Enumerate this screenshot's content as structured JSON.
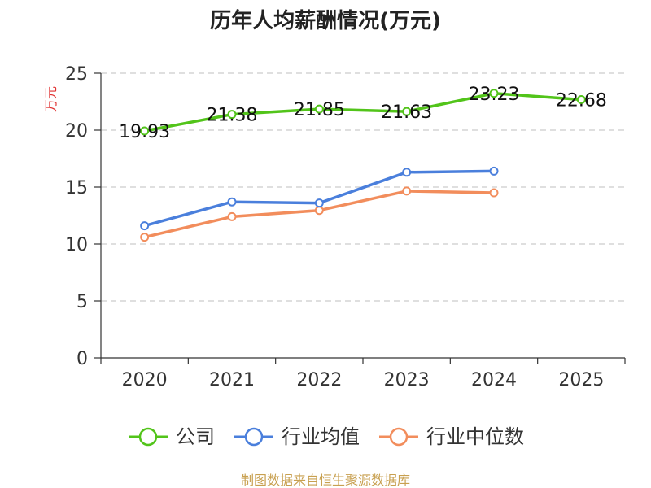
{
  "chart_data": {
    "type": "line",
    "title": "历年人均薪酬情况(万元)",
    "ylabel": "万元",
    "xlabel": "",
    "ylim": [
      0,
      25
    ],
    "yticks": [
      0,
      5,
      10,
      15,
      20,
      25
    ],
    "categories": [
      "2020",
      "2021",
      "2022",
      "2023",
      "2024",
      "2025"
    ],
    "grid": true,
    "legend_position": "bottom",
    "series": [
      {
        "name": "公司",
        "color": "#52c41a",
        "values": [
          19.93,
          21.38,
          21.85,
          21.63,
          23.23,
          22.68
        ],
        "labels": [
          "19.93",
          "21.38",
          "21.85",
          "21.63",
          "23.23",
          "22.68"
        ]
      },
      {
        "name": "行业均值",
        "color": "#4a7fdc",
        "values": [
          11.6,
          13.7,
          13.6,
          16.3,
          16.4,
          null
        ]
      },
      {
        "name": "行业中位数",
        "color": "#f28d5c",
        "values": [
          10.6,
          12.4,
          12.95,
          14.65,
          14.5,
          null
        ]
      }
    ],
    "source": "制图数据来自恒生聚源数据库",
    "colors": {
      "ylabel": "#e03030",
      "source": "#c8a050",
      "axis": "#333333",
      "grid": "#cccccc"
    }
  }
}
